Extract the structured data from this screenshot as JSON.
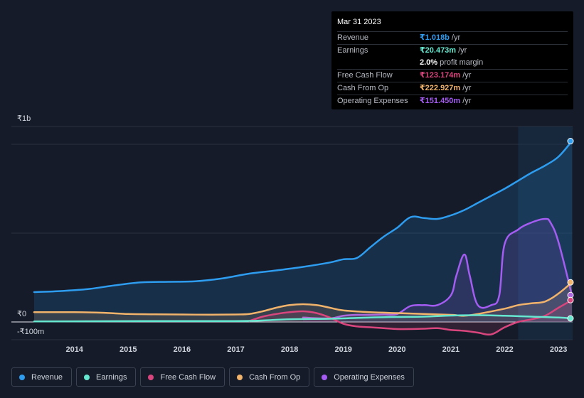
{
  "tooltip": {
    "date": "Mar 31 2023",
    "rows": [
      {
        "label": "Revenue",
        "value": "₹1.018b",
        "unit": "/yr",
        "color": "#2e9df0"
      },
      {
        "label": "Earnings",
        "value": "₹20.473m",
        "unit": "/yr",
        "color": "#66e8d0"
      },
      {
        "label": "",
        "value": "2.0%",
        "unit": "profit margin",
        "color": "#ffffff"
      },
      {
        "label": "Free Cash Flow",
        "value": "₹123.174m",
        "unit": "/yr",
        "color": "#d9467e"
      },
      {
        "label": "Cash From Op",
        "value": "₹222.927m",
        "unit": "/yr",
        "color": "#f2b36b"
      },
      {
        "label": "Operating Expenses",
        "value": "₹151.450m",
        "unit": "/yr",
        "color": "#a45cf2"
      }
    ]
  },
  "chart_data": {
    "type": "line",
    "title": "",
    "xlabel": "",
    "ylabel": "",
    "y_tick_labels": [
      "₹1b",
      "₹0",
      "-₹100m"
    ],
    "x_tick_labels": [
      "2014",
      "2015",
      "2016",
      "2017",
      "2018",
      "2019",
      "2020",
      "2021",
      "2022",
      "2023"
    ],
    "xlim": [
      2013.25,
      2023.25
    ],
    "ylim": [
      -100,
      1000
    ],
    "units": "₹ millions",
    "forecast_start": 2022.25,
    "series": [
      {
        "name": "Revenue",
        "color": "#2e9df0",
        "fill": true,
        "x": [
          2013.25,
          2013.75,
          2014.25,
          2014.75,
          2015.25,
          2015.75,
          2016.25,
          2016.75,
          2017.25,
          2017.75,
          2018.25,
          2018.75,
          2019.0,
          2019.25,
          2019.5,
          2019.75,
          2020.0,
          2020.25,
          2020.5,
          2020.75,
          2021.0,
          2021.25,
          2021.5,
          2021.75,
          2022.0,
          2022.25,
          2022.5,
          2022.75,
          2023.0,
          2023.25
        ],
        "values": [
          168,
          174,
          185,
          206,
          223,
          226,
          229,
          245,
          272,
          290,
          310,
          335,
          353,
          360,
          420,
          480,
          530,
          590,
          585,
          580,
          600,
          630,
          670,
          710,
          750,
          795,
          840,
          880,
          930,
          1018
        ]
      },
      {
        "name": "Earnings",
        "color": "#66e8d0",
        "fill": false,
        "x": [
          2013.25,
          2014.25,
          2015.25,
          2016.25,
          2017.25,
          2018.0,
          2018.75,
          2019.5,
          2020.0,
          2020.5,
          2021.0,
          2021.5,
          2022.0,
          2022.5,
          2023.0,
          2023.25
        ],
        "values": [
          3,
          4,
          5,
          5,
          6,
          15,
          18,
          25,
          28,
          30,
          36,
          38,
          35,
          30,
          25,
          20
        ]
      },
      {
        "name": "Free Cash Flow",
        "color": "#d9467e",
        "fill": true,
        "x": [
          2017.25,
          2017.5,
          2017.75,
          2018.0,
          2018.25,
          2018.5,
          2018.75,
          2019.0,
          2019.25,
          2019.5,
          2019.75,
          2020.0,
          2020.25,
          2020.5,
          2020.75,
          2021.0,
          2021.25,
          2021.5,
          2021.75,
          2022.0,
          2022.25,
          2022.5,
          2022.75,
          2023.0,
          2023.25
        ],
        "values": [
          5,
          30,
          45,
          55,
          60,
          50,
          25,
          -10,
          -25,
          -30,
          -35,
          -40,
          -40,
          -38,
          -35,
          -45,
          -50,
          -60,
          -70,
          -30,
          0,
          15,
          35,
          80,
          123
        ]
      },
      {
        "name": "Cash From Op",
        "color": "#f2b36b",
        "fill": true,
        "x": [
          2013.25,
          2014.0,
          2014.5,
          2015.0,
          2015.5,
          2016.0,
          2016.5,
          2017.0,
          2017.25,
          2017.5,
          2017.75,
          2018.0,
          2018.25,
          2018.5,
          2018.75,
          2019.0,
          2019.5,
          2020.0,
          2020.5,
          2021.0,
          2021.25,
          2021.5,
          2022.0,
          2022.25,
          2022.5,
          2022.75,
          2023.0,
          2023.25
        ],
        "values": [
          55,
          55,
          52,
          45,
          43,
          42,
          41,
          42,
          45,
          60,
          80,
          95,
          100,
          95,
          80,
          65,
          55,
          50,
          45,
          40,
          35,
          45,
          75,
          95,
          105,
          115,
          160,
          223
        ]
      },
      {
        "name": "Operating Expenses",
        "color": "#a45cf2",
        "fill": true,
        "x": [
          2018.25,
          2018.75,
          2019.0,
          2019.25,
          2019.5,
          2019.75,
          2020.0,
          2020.25,
          2020.5,
          2020.75,
          2021.0,
          2021.1,
          2021.25,
          2021.35,
          2021.5,
          2021.75,
          2021.9,
          2022.0,
          2022.25,
          2022.5,
          2022.75,
          2022.85,
          2023.0,
          2023.25
        ],
        "values": [
          25,
          20,
          35,
          40,
          40,
          42,
          45,
          90,
          95,
          95,
          150,
          260,
          380,
          260,
          95,
          95,
          150,
          440,
          520,
          560,
          580,
          560,
          450,
          151
        ]
      }
    ]
  },
  "legend": [
    {
      "label": "Revenue",
      "color": "#2e9df0"
    },
    {
      "label": "Earnings",
      "color": "#66e8d0"
    },
    {
      "label": "Free Cash Flow",
      "color": "#d9467e"
    },
    {
      "label": "Cash From Op",
      "color": "#f2b36b"
    },
    {
      "label": "Operating Expenses",
      "color": "#a45cf2"
    }
  ]
}
